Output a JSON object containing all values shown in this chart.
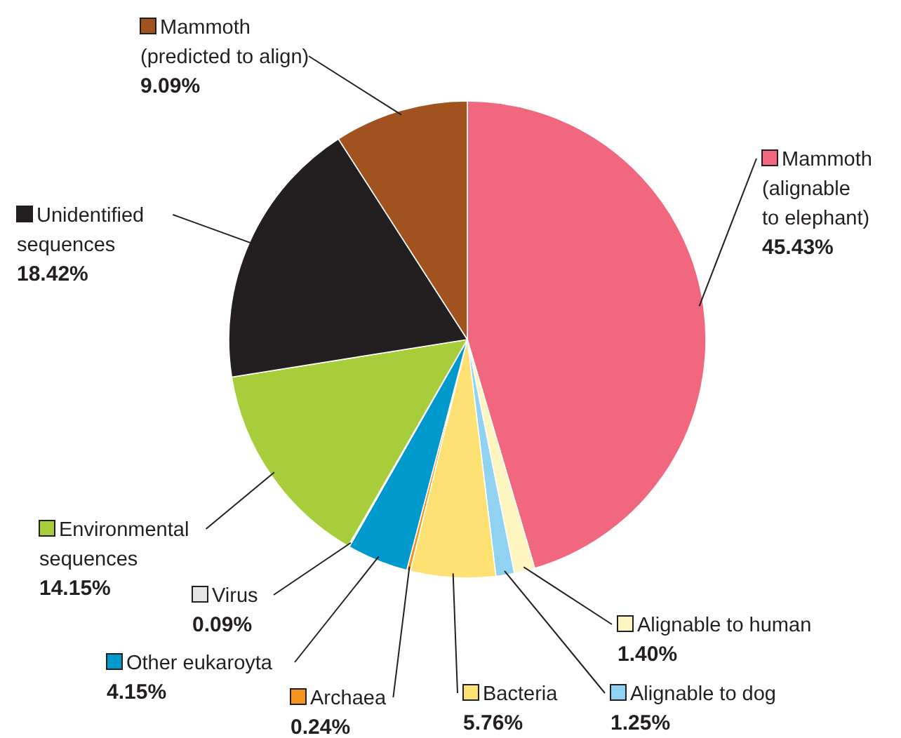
{
  "chart_data": {
    "type": "pie",
    "categories": [
      "Mammoth\n(alignable\nto elephant)",
      "Alignable to human",
      "Alignable to dog",
      "Bacteria",
      "Archaea",
      "Other eukaroyta",
      "Virus",
      "Environmental\nsequences",
      "Unidentified\nsequences",
      "Mammoth\n(predicted to align)"
    ],
    "values": [
      45.43,
      1.4,
      1.25,
      5.76,
      0.24,
      4.15,
      0.09,
      14.15,
      18.42,
      9.09
    ],
    "colors": [
      "#f0677e",
      "#fdf6c0",
      "#8fd3f0",
      "#fde273",
      "#f7941d",
      "#0099cc",
      "#e6e6e6",
      "#a8cd3a",
      "#231f20",
      "#a0521f"
    ],
    "legend": "bottom",
    "value_labels": [
      "45.43%",
      "1.40%",
      "1.25%",
      "5.76%",
      "0.24%",
      "4.15%",
      "0.09%",
      "14.15%",
      "18.42%",
      "9.09%"
    ]
  }
}
